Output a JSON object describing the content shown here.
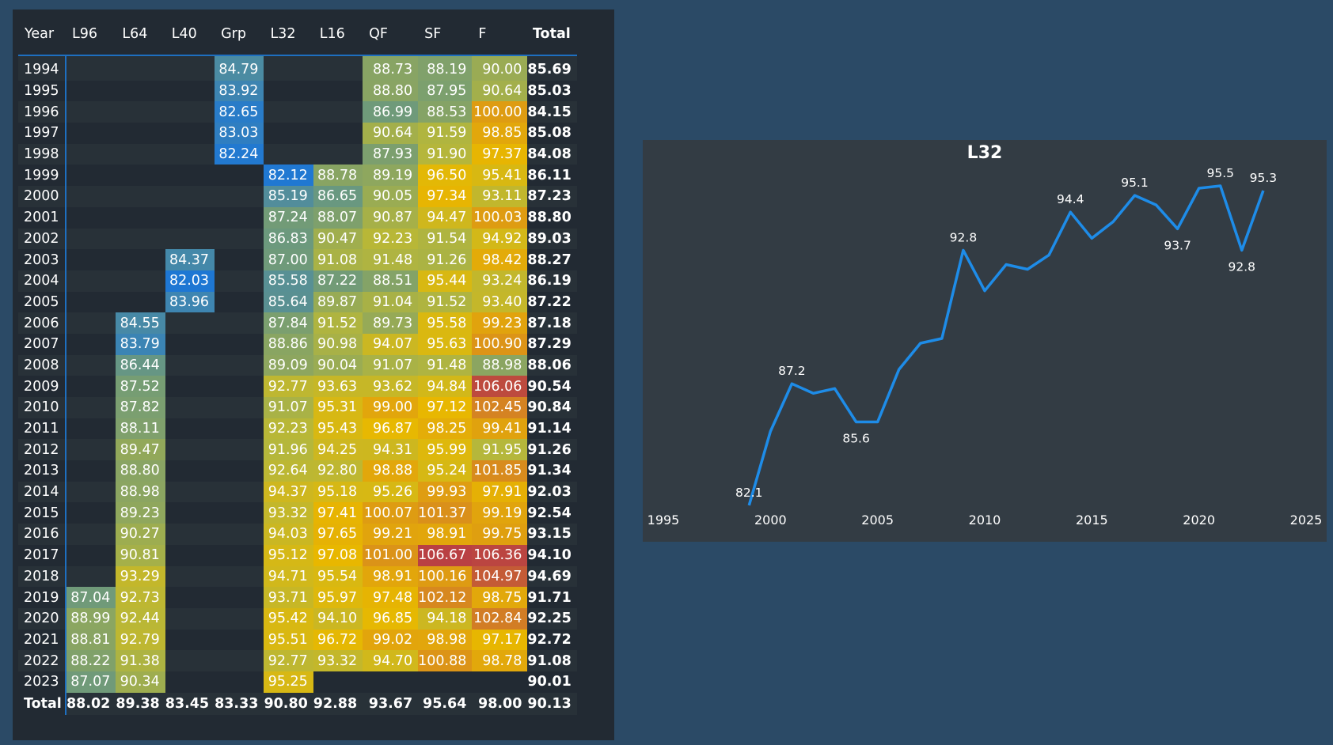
{
  "table": {
    "columns": [
      "Year",
      "L96",
      "L64",
      "L40",
      "Grp",
      "L32",
      "L16",
      "QF",
      "SF",
      "F",
      "Total"
    ],
    "rows": [
      {
        "year": "1994",
        "cells": [
          null,
          null,
          null,
          84.79,
          null,
          null,
          88.73,
          88.19,
          90.0
        ],
        "total": 85.69
      },
      {
        "year": "1995",
        "cells": [
          null,
          null,
          null,
          83.92,
          null,
          null,
          88.8,
          87.95,
          90.64
        ],
        "total": 85.03
      },
      {
        "year": "1996",
        "cells": [
          null,
          null,
          null,
          82.65,
          null,
          null,
          86.99,
          88.53,
          100.0
        ],
        "total": 84.15
      },
      {
        "year": "1997",
        "cells": [
          null,
          null,
          null,
          83.03,
          null,
          null,
          90.64,
          91.59,
          98.85
        ],
        "total": 85.08
      },
      {
        "year": "1998",
        "cells": [
          null,
          null,
          null,
          82.24,
          null,
          null,
          87.93,
          91.9,
          97.37
        ],
        "total": 84.08
      },
      {
        "year": "1999",
        "cells": [
          null,
          null,
          null,
          null,
          82.12,
          88.78,
          89.19,
          96.5,
          95.41
        ],
        "total": 86.11
      },
      {
        "year": "2000",
        "cells": [
          null,
          null,
          null,
          null,
          85.19,
          86.65,
          90.05,
          97.34,
          93.11
        ],
        "total": 87.23
      },
      {
        "year": "2001",
        "cells": [
          null,
          null,
          null,
          null,
          87.24,
          88.07,
          90.87,
          94.47,
          100.03
        ],
        "total": 88.8
      },
      {
        "year": "2002",
        "cells": [
          null,
          null,
          null,
          null,
          86.83,
          90.47,
          92.23,
          91.54,
          94.92
        ],
        "total": 89.03
      },
      {
        "year": "2003",
        "cells": [
          null,
          null,
          84.37,
          null,
          87.0,
          91.08,
          91.48,
          91.26,
          98.42
        ],
        "total": 88.27
      },
      {
        "year": "2004",
        "cells": [
          null,
          null,
          82.03,
          null,
          85.58,
          87.22,
          88.51,
          95.44,
          93.24
        ],
        "total": 86.19
      },
      {
        "year": "2005",
        "cells": [
          null,
          null,
          83.96,
          null,
          85.64,
          89.87,
          91.04,
          91.52,
          93.4
        ],
        "total": 87.22
      },
      {
        "year": "2006",
        "cells": [
          null,
          84.55,
          null,
          null,
          87.84,
          91.52,
          89.73,
          95.58,
          99.23
        ],
        "total": 87.18
      },
      {
        "year": "2007",
        "cells": [
          null,
          83.79,
          null,
          null,
          88.86,
          90.98,
          94.07,
          95.63,
          100.9
        ],
        "total": 87.29
      },
      {
        "year": "2008",
        "cells": [
          null,
          86.44,
          null,
          null,
          89.09,
          90.04,
          91.07,
          91.48,
          88.98
        ],
        "total": 88.06
      },
      {
        "year": "2009",
        "cells": [
          null,
          87.52,
          null,
          null,
          92.77,
          93.63,
          93.62,
          94.84,
          106.06
        ],
        "total": 90.54
      },
      {
        "year": "2010",
        "cells": [
          null,
          87.82,
          null,
          null,
          91.07,
          95.31,
          99.0,
          97.12,
          102.45
        ],
        "total": 90.84
      },
      {
        "year": "2011",
        "cells": [
          null,
          88.11,
          null,
          null,
          92.23,
          95.43,
          96.87,
          98.25,
          99.41
        ],
        "total": 91.14
      },
      {
        "year": "2012",
        "cells": [
          null,
          89.47,
          null,
          null,
          91.96,
          94.25,
          94.31,
          95.99,
          91.95
        ],
        "total": 91.26
      },
      {
        "year": "2013",
        "cells": [
          null,
          88.8,
          null,
          null,
          92.64,
          92.8,
          98.88,
          95.24,
          101.85
        ],
        "total": 91.34
      },
      {
        "year": "2014",
        "cells": [
          null,
          88.98,
          null,
          null,
          94.37,
          95.18,
          95.26,
          99.93,
          97.91
        ],
        "total": 92.03
      },
      {
        "year": "2015",
        "cells": [
          null,
          89.23,
          null,
          null,
          93.32,
          97.41,
          100.07,
          101.37,
          99.19
        ],
        "total": 92.54
      },
      {
        "year": "2016",
        "cells": [
          null,
          90.27,
          null,
          null,
          94.03,
          97.65,
          99.21,
          98.91,
          99.75
        ],
        "total": 93.15
      },
      {
        "year": "2017",
        "cells": [
          null,
          90.81,
          null,
          null,
          95.12,
          97.08,
          101.0,
          106.67,
          106.36
        ],
        "total": 94.1
      },
      {
        "year": "2018",
        "cells": [
          null,
          93.29,
          null,
          null,
          94.71,
          95.54,
          98.91,
          100.16,
          104.97
        ],
        "total": 94.69
      },
      {
        "year": "2019",
        "cells": [
          87.04,
          92.73,
          null,
          null,
          93.71,
          95.97,
          97.48,
          102.12,
          98.75
        ],
        "total": 91.71
      },
      {
        "year": "2020",
        "cells": [
          88.99,
          92.44,
          null,
          null,
          95.42,
          94.1,
          96.85,
          94.18,
          102.84
        ],
        "total": 92.25
      },
      {
        "year": "2021",
        "cells": [
          88.81,
          92.79,
          null,
          null,
          95.51,
          96.72,
          99.02,
          98.98,
          97.17
        ],
        "total": 92.72
      },
      {
        "year": "2022",
        "cells": [
          88.22,
          91.38,
          null,
          null,
          92.77,
          93.32,
          94.7,
          100.88,
          98.78
        ],
        "total": 91.08
      },
      {
        "year": "2023",
        "cells": [
          87.07,
          90.34,
          null,
          null,
          95.25,
          null,
          null,
          null,
          null
        ],
        "total": 90.01
      }
    ],
    "footer": {
      "label": "Total",
      "cells": [
        88.02,
        89.38,
        83.45,
        83.33,
        90.8,
        92.88,
        93.67,
        95.64,
        98.0
      ],
      "total": 90.13
    },
    "color_scale": {
      "min": 82,
      "max": 107,
      "stops": [
        "#1e77d4",
        "#6f9a7a",
        "#b6b73a",
        "#e8b800",
        "#d88a1e",
        "#b73b46"
      ]
    }
  },
  "chart_data": {
    "type": "line",
    "title": "L32",
    "xlabel": "",
    "ylabel": "",
    "x": [
      1999,
      2000,
      2001,
      2002,
      2003,
      2004,
      2005,
      2006,
      2007,
      2008,
      2009,
      2010,
      2011,
      2012,
      2013,
      2014,
      2015,
      2016,
      2017,
      2018,
      2019,
      2020,
      2021,
      2022,
      2023
    ],
    "series": [
      {
        "values": [
          82.1,
          85.2,
          87.2,
          86.8,
          87.0,
          85.6,
          85.6,
          87.8,
          88.9,
          89.1,
          92.8,
          91.1,
          92.2,
          92.0,
          92.6,
          94.4,
          93.3,
          94.0,
          95.1,
          94.7,
          93.7,
          95.4,
          95.5,
          92.8,
          95.3
        ]
      }
    ],
    "data_labels": [
      {
        "x": 1999,
        "text": "82.1"
      },
      {
        "x": 2001,
        "text": "87.2"
      },
      {
        "x": 2004,
        "text": "85.6"
      },
      {
        "x": 2009,
        "text": "92.8"
      },
      {
        "x": 2014,
        "text": "94.4"
      },
      {
        "x": 2017,
        "text": "95.1"
      },
      {
        "x": 2019,
        "text": "93.7"
      },
      {
        "x": 2021,
        "text": "95.5"
      },
      {
        "x": 2022,
        "text": "92.8"
      },
      {
        "x": 2023,
        "text": "95.3"
      }
    ],
    "x_ticks": [
      1995,
      2000,
      2005,
      2010,
      2015,
      2020,
      2025
    ],
    "xlim": [
      1995,
      2025
    ],
    "ylim": [
      82.1,
      95.5
    ],
    "grid": false,
    "line_color": "#1e8ce8"
  }
}
